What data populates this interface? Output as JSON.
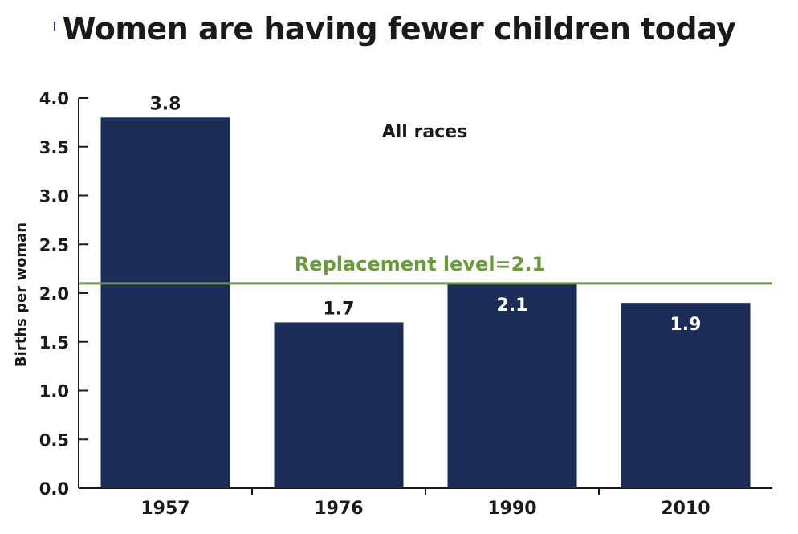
{
  "chart_data": {
    "type": "bar",
    "title": "Women are having fewer children today",
    "ylabel": "Births per woman",
    "xlabel": "",
    "categories": [
      "1957",
      "1976",
      "1990",
      "2010"
    ],
    "values": [
      3.8,
      1.7,
      2.1,
      1.9
    ],
    "data_labels": [
      "3.8",
      "1.7",
      "2.1",
      "1.9"
    ],
    "ylim": [
      0,
      4.0
    ],
    "yticks": [
      "0.0",
      "0.5",
      "1.0",
      "1.5",
      "2.0",
      "2.5",
      "3.0",
      "3.5",
      "4.0"
    ],
    "annotation": "All races",
    "reference_line": {
      "value": 2.1,
      "label": "Replacement level=2.1"
    },
    "grid": false,
    "colors": {
      "bar": "#1b2c57",
      "reference": "#6a9a3c",
      "label_on_bar": "#ffffff",
      "label_above": "#1a1a1a"
    }
  }
}
